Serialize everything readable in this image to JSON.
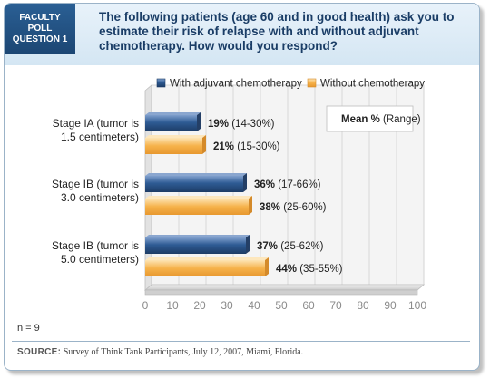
{
  "badge": [
    "FACULTY",
    "POLL",
    "QUESTION 1"
  ],
  "question": "The following patients (age 60 and in good health) ask you to estimate their risk of relapse with and without adjuvant chemotherapy. How would you respond?",
  "n_label": "n = 9",
  "source": {
    "label": "SOURCE:",
    "text": "Survey of Think Tank Participants, July 12, 2007, Miami, Florida."
  },
  "colors": {
    "with": "#2e5b94",
    "without": "#f6b24a"
  },
  "chart_data": {
    "type": "bar",
    "orientation": "horizontal",
    "categories": [
      [
        "Stage IA (tumor is",
        "1.5 centimeters)"
      ],
      [
        "Stage IB (tumor is",
        "3.0 centimeters)"
      ],
      [
        "Stage IB (tumor is",
        "5.0 centimeters)"
      ]
    ],
    "series": [
      {
        "name": "With adjuvant chemotherapy",
        "values": [
          19,
          36,
          37
        ],
        "labels": [
          "19%",
          "36%",
          "37%"
        ],
        "ranges": [
          "(14-30%)",
          "(17-66%)",
          "(25-62%)"
        ]
      },
      {
        "name": "Without chemotherapy",
        "values": [
          21,
          38,
          44
        ],
        "labels": [
          "21%",
          "38%",
          "44%"
        ],
        "ranges": [
          "(15-30%)",
          "(25-60%)",
          "(35-55%)"
        ]
      }
    ],
    "annotation": {
      "bold": "Mean %",
      "normal": "(Range)"
    },
    "xlim": [
      0,
      100
    ],
    "xticks": [
      0,
      10,
      20,
      30,
      40,
      50,
      60,
      70,
      80,
      90,
      100
    ],
    "grid": true,
    "legend": "top"
  }
}
